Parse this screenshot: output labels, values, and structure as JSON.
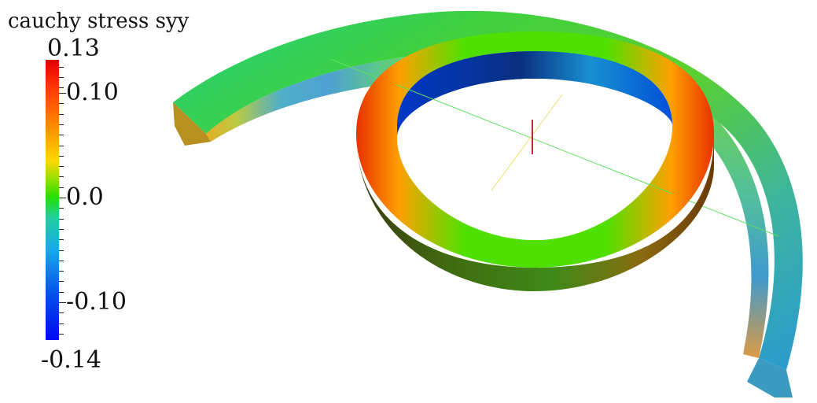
{
  "legend": {
    "title": "cauchy stress syy",
    "max_label": "0.13",
    "labels": [
      "0.10",
      "0.0",
      "-0.10"
    ],
    "min_label": "-0.14",
    "range": [
      -0.14,
      0.13
    ]
  },
  "colors": {
    "high": "#e00000",
    "mid": "#22e000",
    "low": "#0008f0"
  }
}
